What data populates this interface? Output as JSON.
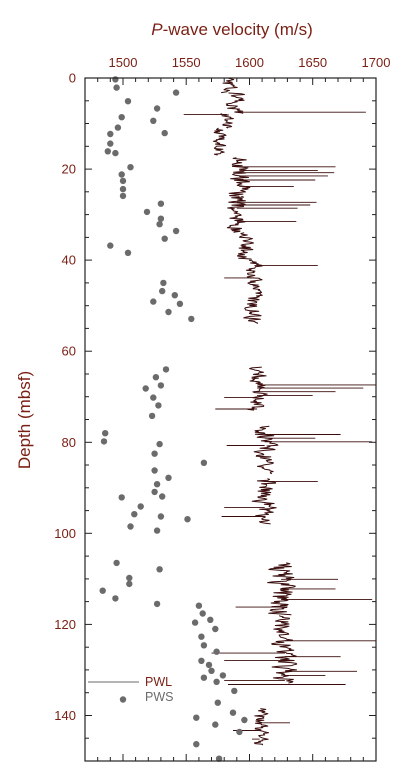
{
  "chart_data": {
    "type": "scatter",
    "xlabel_italic": "P",
    "xlabel_rest": "-wave velocity (m/s)",
    "ylabel": "Depth (mbsf)",
    "xlim": [
      1470,
      1700
    ],
    "ylim": [
      150,
      0
    ],
    "x_ticks": [
      1500,
      1550,
      1600,
      1650,
      1700
    ],
    "y_ticks": [
      0,
      20,
      40,
      60,
      80,
      100,
      120,
      140
    ],
    "grid": false,
    "legend_position": "bottom-left",
    "colors": {
      "text": "#7a1f14",
      "pwl": "#3a0c0c",
      "pws": "#6b6b6b",
      "axis": "#222222"
    },
    "series": [
      {
        "name": "PWL",
        "type": "line",
        "segments": [
          {
            "depth": [
              0,
              3.3
            ],
            "center": 1583,
            "spread": 9
          },
          {
            "depth": [
              3.3,
              7.8
            ],
            "center": 1589,
            "spread": 10
          },
          {
            "depth": [
              7.8,
              11
            ],
            "center": 1582,
            "spread": 7
          },
          {
            "depth": [
              11,
              17
            ],
            "center": 1576,
            "spread": 7
          },
          {
            "depth": [
              17.5,
              26
            ],
            "center": 1592,
            "spread": 11
          },
          {
            "depth": [
              26,
              34
            ],
            "center": 1590,
            "spread": 11
          },
          {
            "depth": [
              34,
              40
            ],
            "center": 1598,
            "spread": 11
          },
          {
            "depth": [
              40,
              45
            ],
            "center": 1604,
            "spread": 9
          },
          {
            "depth": [
              45,
              54
            ],
            "center": 1603,
            "spread": 9
          },
          {
            "depth": [
              63.5,
              73
            ],
            "center": 1606,
            "spread": 10
          },
          {
            "depth": [
              76.5,
              87
            ],
            "center": 1612,
            "spread": 12
          },
          {
            "depth": [
              88,
              98
            ],
            "center": 1612,
            "spread": 12
          },
          {
            "depth": [
              106.5,
              118
            ],
            "center": 1625,
            "spread": 14
          },
          {
            "depth": [
              118,
              133
            ],
            "center": 1628,
            "spread": 13
          },
          {
            "depth": [
              138.5,
              146.5
            ],
            "center": 1608,
            "spread": 9
          }
        ],
        "spikes": [
          [
            7.5,
            1692
          ],
          [
            8.0,
            1548
          ],
          [
            19.5,
            1668
          ],
          [
            20.3,
            1654
          ],
          [
            20.8,
            1667
          ],
          [
            21.5,
            1662
          ],
          [
            22.4,
            1652
          ],
          [
            23.8,
            1635
          ],
          [
            27.3,
            1653
          ],
          [
            27.9,
            1648
          ],
          [
            28.6,
            1638
          ],
          [
            31.5,
            1637
          ],
          [
            41.2,
            1654
          ],
          [
            43.9,
            1580
          ],
          [
            67.4,
            1700
          ],
          [
            68.1,
            1690
          ],
          [
            68.9,
            1668
          ],
          [
            69.7,
            1650
          ],
          [
            70.2,
            1580
          ],
          [
            72.7,
            1573
          ],
          [
            78.3,
            1672
          ],
          [
            79.1,
            1652
          ],
          [
            79.9,
            1697
          ],
          [
            80.7,
            1582
          ],
          [
            88.6,
            1654
          ],
          [
            94.3,
            1580
          ],
          [
            96.3,
            1578
          ],
          [
            110.1,
            1670
          ],
          [
            112.2,
            1668
          ],
          [
            114.5,
            1697
          ],
          [
            116.2,
            1589
          ],
          [
            123.6,
            1700
          ],
          [
            126.3,
            1570
          ],
          [
            127.1,
            1672
          ],
          [
            127.9,
            1580
          ],
          [
            130.3,
            1685
          ],
          [
            131.2,
            1660
          ],
          [
            132.3,
            1580
          ],
          [
            133.2,
            1676
          ],
          [
            141.6,
            1632
          ],
          [
            143.3,
            1587
          ],
          [
            145.2,
            1602
          ]
        ]
      },
      {
        "name": "PWS",
        "type": "scatter",
        "points": [
          [
            1494,
            0.3
          ],
          [
            1495,
            2.1
          ],
          [
            1504,
            5.1
          ],
          [
            1542,
            3.2
          ],
          [
            1527,
            6.7
          ],
          [
            1499,
            8.6
          ],
          [
            1524,
            9.4
          ],
          [
            1496,
            10.9
          ],
          [
            1533,
            12.1
          ],
          [
            1490,
            12.3
          ],
          [
            1490,
            14.4
          ],
          [
            1488,
            16.1
          ],
          [
            1494,
            16.5
          ],
          [
            1506,
            19.6
          ],
          [
            1499,
            21.2
          ],
          [
            1500,
            22.6
          ],
          [
            1500,
            24.4
          ],
          [
            1500,
            25.9
          ],
          [
            1530,
            27.6
          ],
          [
            1519,
            29.4
          ],
          [
            1530,
            30.9
          ],
          [
            1529,
            32.1
          ],
          [
            1542,
            33.6
          ],
          [
            1533,
            35.3
          ],
          [
            1490,
            36.8
          ],
          [
            1504,
            38.4
          ],
          [
            1532,
            45.0
          ],
          [
            1531,
            46.8
          ],
          [
            1541,
            47.7
          ],
          [
            1524,
            49.1
          ],
          [
            1545,
            49.6
          ],
          [
            1536,
            51.4
          ],
          [
            1554,
            52.9
          ],
          [
            1534,
            64.0
          ],
          [
            1526,
            65.7
          ],
          [
            1530,
            67.5
          ],
          [
            1518,
            68.2
          ],
          [
            1524,
            70.2
          ],
          [
            1528,
            71.9
          ],
          [
            1523,
            74.2
          ],
          [
            1486,
            78.0
          ],
          [
            1485,
            79.8
          ],
          [
            1529,
            80.4
          ],
          [
            1525,
            82.5
          ],
          [
            1525,
            86.2
          ],
          [
            1536,
            87.8
          ],
          [
            1527,
            89.2
          ],
          [
            1525,
            90.9
          ],
          [
            1531,
            91.9
          ],
          [
            1499,
            92.1
          ],
          [
            1564,
            84.5
          ],
          [
            1514,
            94.1
          ],
          [
            1509,
            95.8
          ],
          [
            1530,
            96.3
          ],
          [
            1551,
            96.9
          ],
          [
            1506,
            98.5
          ],
          [
            1527,
            99.4
          ],
          [
            1495,
            106.5
          ],
          [
            1529,
            107.9
          ],
          [
            1505,
            109.8
          ],
          [
            1505,
            111.1
          ],
          [
            1484,
            112.6
          ],
          [
            1494,
            114.3
          ],
          [
            1527,
            115.5
          ],
          [
            1560,
            115.9
          ],
          [
            1563,
            117.6
          ],
          [
            1569,
            119.0
          ],
          [
            1557,
            119.6
          ],
          [
            1573,
            121.0
          ],
          [
            1562,
            122.7
          ],
          [
            1564,
            124.6
          ],
          [
            1574,
            126.0
          ],
          [
            1562,
            128.0
          ],
          [
            1568,
            128.9
          ],
          [
            1570,
            130.2
          ],
          [
            1579,
            131.2
          ],
          [
            1564,
            131.7
          ],
          [
            1574,
            132.6
          ],
          [
            1588,
            134.6
          ],
          [
            1500,
            136.5
          ],
          [
            1575,
            137.2
          ],
          [
            1587,
            139.4
          ],
          [
            1558,
            140.5
          ],
          [
            1596,
            141.0
          ],
          [
            1573,
            142.0
          ],
          [
            1592,
            143.6
          ],
          [
            1558,
            146.3
          ],
          [
            1576,
            149.5
          ]
        ]
      }
    ]
  }
}
